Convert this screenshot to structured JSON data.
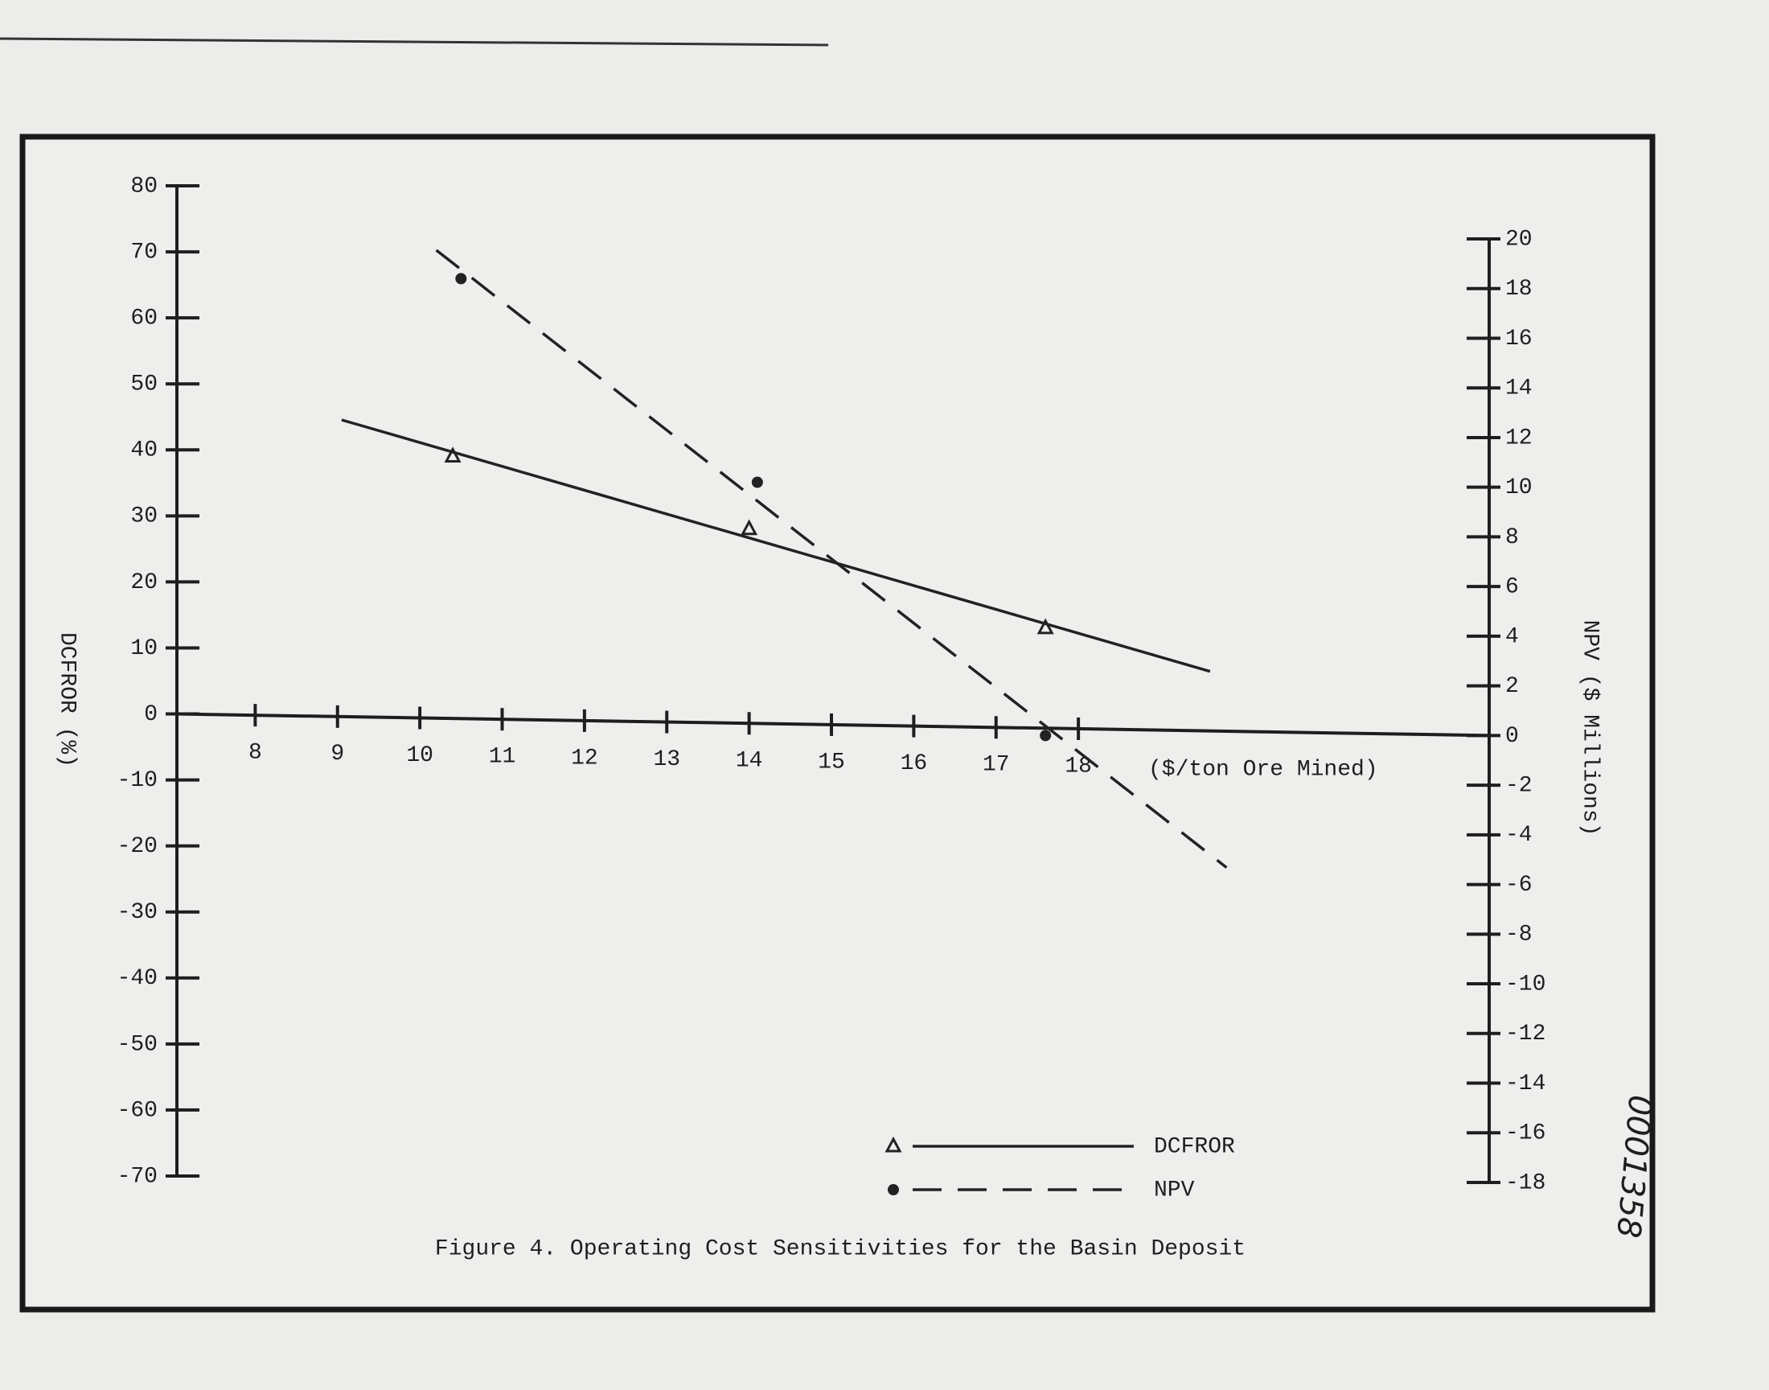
{
  "chart_data": {
    "type": "scatter",
    "caption": "Figure 4. Operating Cost Sensitivities for the Basin Deposit",
    "x_label": "($/ton Ore Mined)",
    "y_label": "DCFROR (%)",
    "y2_label": "NPV ($ Millions)",
    "annotation": "0001358",
    "xlim": [
      7,
      23
    ],
    "xticks": [
      8,
      9,
      10,
      11,
      12,
      13,
      14,
      15,
      16,
      17,
      18
    ],
    "ylim": [
      -70,
      80
    ],
    "yticks": [
      80,
      70,
      60,
      50,
      40,
      30,
      20,
      10,
      0,
      -10,
      -20,
      -30,
      -40,
      -50,
      -60,
      -70
    ],
    "y2lim": [
      -18,
      20
    ],
    "y2ticks": [
      20,
      18,
      16,
      14,
      12,
      10,
      8,
      6,
      4,
      2,
      0,
      -2,
      -4,
      -6,
      -8,
      -10,
      -12,
      -14,
      -16,
      -18
    ],
    "series": [
      {
        "name": "DCFROR",
        "color": "#222222",
        "marker": "triangle",
        "line_style": "solid",
        "x": [
          10.4,
          14.0,
          17.6
        ],
        "values": [
          39,
          28,
          13
        ]
      },
      {
        "name": "NPV",
        "color": "#222222",
        "marker": "circle",
        "line_style": "dashed",
        "axis": "y2",
        "x": [
          10.5,
          14.1,
          17.6
        ],
        "values": [
          18.4,
          10.2,
          0
        ]
      }
    ]
  }
}
